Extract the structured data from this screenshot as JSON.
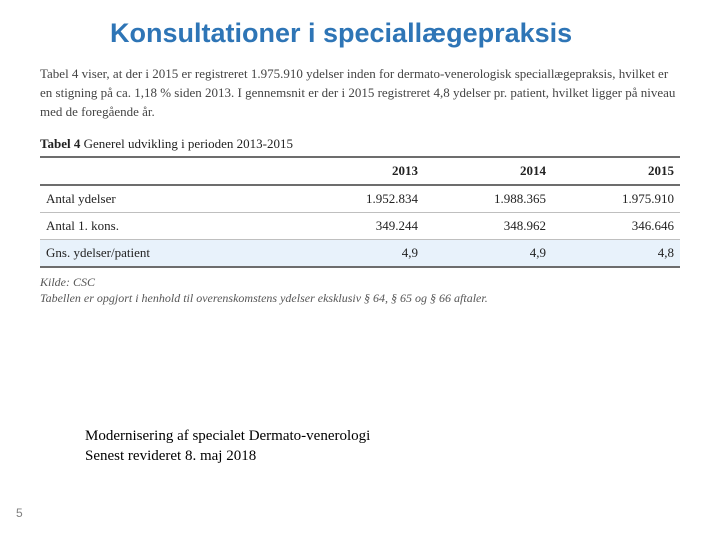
{
  "title": "Konsultationer i speciallægepraksis",
  "intro": "Tabel 4 viser, at der i 2015 er registreret 1.975.910 ydelser inden for dermato-venerologisk speciallægepraksis, hvilket er en stigning på ca. 1,18 % siden 2013. I gennemsnit er der i 2015 registreret 4,8 ydelser pr. patient, hvilket ligger på niveau med de foregående år.",
  "table": {
    "caption_bold": "Tabel 4",
    "caption_rest": " Generel udvikling i perioden 2013-2015",
    "columns": [
      "",
      "2013",
      "2014",
      "2015"
    ],
    "rows": [
      {
        "label": "Antal ydelser",
        "values": [
          "1.952.834",
          "1.988.365",
          "1.975.910"
        ],
        "highlight": false
      },
      {
        "label": "Antal 1. kons.",
        "values": [
          "349.244",
          "348.962",
          "346.646"
        ],
        "highlight": false
      },
      {
        "label": "Gns. ydelser/patient",
        "values": [
          "4,9",
          "4,9",
          "4,8"
        ],
        "highlight": true
      }
    ],
    "source_label": "Kilde: CSC",
    "source_note": "Tabellen er opgjort i henhold til overenskomstens ydelser eksklusiv § 64, § 65 og § 66 aftaler.",
    "styling": {
      "font_family": "Georgia/serif",
      "header_border_color": "#6d6d6d",
      "row_border_color": "#bfbfbf",
      "highlight_bg": "#e8f2fb",
      "font_size_pt": 13
    }
  },
  "footer": {
    "line1": "Modernisering af specialet Dermato-venerologi",
    "line2": "Senest revideret 8. maj 2018"
  },
  "page_number": "5",
  "theme": {
    "title_color": "#2e75b6",
    "background": "#ffffff"
  }
}
